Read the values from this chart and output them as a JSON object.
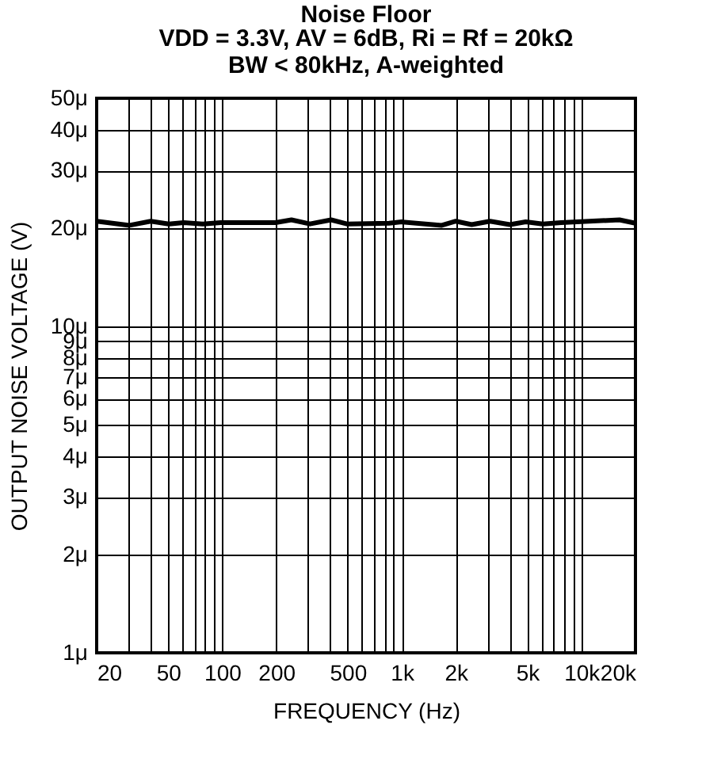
{
  "chart_data": {
    "type": "line",
    "title": "Noise Floor",
    "subtitle": "VDD = 3.3V, AV = 6dB, Ri = Rf = 20kΩ\nBW < 80kHz, A-weighted",
    "xlabel": "FREQUENCY (Hz)",
    "ylabel": "OUTPUT NOISE VOLTAGE (V)",
    "x": [
      20,
      30.5,
      40,
      50.5,
      61,
      78,
      98,
      198,
      243,
      308,
      404,
      495,
      850,
      1000,
      1670,
      2000,
      2450,
      3100,
      4000,
      4900,
      6100,
      7700,
      16300,
      20000
    ],
    "series": [
      {
        "color": "#000000",
        "values": [
          21,
          20.4,
          21,
          20.6,
          20.8,
          20.6,
          20.8,
          20.8,
          21.2,
          20.6,
          21.2,
          20.6,
          20.7,
          20.9,
          20.4,
          21,
          20.5,
          21,
          20.5,
          20.9,
          20.6,
          20.8,
          21.2,
          20.7
        ]
      }
    ],
    "log": "xy",
    "xlim": [
      20,
      20000
    ],
    "ylim": [
      1,
      50
    ],
    "xticks": [
      20,
      {
        "value": 30,
        "label": null
      },
      {
        "value": 40,
        "label": null
      },
      50,
      {
        "value": 60,
        "label": null
      },
      {
        "value": 70,
        "label": null
      },
      {
        "value": 80,
        "label": null
      },
      {
        "value": 90,
        "label": null
      },
      100,
      200,
      {
        "value": 300,
        "label": null
      },
      {
        "value": 400,
        "label": null
      },
      500,
      {
        "value": 600,
        "label": null
      },
      {
        "value": 700,
        "label": null
      },
      {
        "value": 800,
        "label": null
      },
      {
        "value": 900,
        "label": null
      },
      {
        "value": 1000,
        "label": "1k"
      },
      {
        "value": 2000,
        "label": "2k"
      },
      {
        "value": 3000,
        "label": null
      },
      {
        "value": 4000,
        "label": null
      },
      {
        "value": 5000,
        "label": "5k"
      },
      {
        "value": 6000,
        "label": null
      },
      {
        "value": 7000,
        "label": null
      },
      {
        "value": 8000,
        "label": null
      },
      {
        "value": 9000,
        "label": null
      },
      {
        "value": 10000,
        "label": "10k"
      },
      {
        "value": 20000,
        "label": "20k"
      }
    ],
    "yticks": [
      {
        "value": 1,
        "label": "1μ"
      },
      {
        "value": 2,
        "label": "2μ"
      },
      {
        "value": 3,
        "label": "3μ"
      },
      {
        "value": 4,
        "label": "4μ"
      },
      {
        "value": 5,
        "label": "5μ"
      },
      {
        "value": 6,
        "label": "6μ"
      },
      {
        "value": 7,
        "label": "7μ"
      },
      {
        "value": 8,
        "label": "8μ"
      },
      {
        "value": 9,
        "label": "9μ"
      },
      {
        "value": 10,
        "label": "10μ"
      },
      {
        "value": 20,
        "label": "20μ"
      },
      {
        "value": 30,
        "label": "30μ"
      },
      {
        "value": 40,
        "label": "40μ"
      },
      {
        "value": 50,
        "label": "50μ"
      }
    ],
    "grid": true,
    "marker": "none",
    "line_style": "solid"
  }
}
